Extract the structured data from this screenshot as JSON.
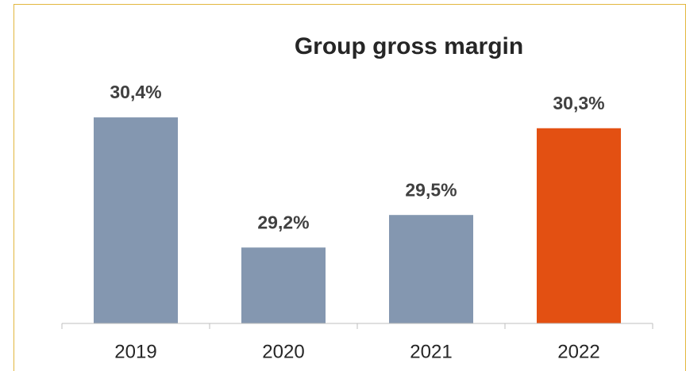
{
  "chart_data": {
    "type": "bar",
    "title": "Group gross margin",
    "categories": [
      "2019",
      "2020",
      "2021",
      "2022"
    ],
    "values": [
      30.4,
      29.2,
      29.5,
      30.3
    ],
    "value_labels": [
      "30,4%",
      "29,2%",
      "29,5%",
      "30,3%"
    ],
    "colors": [
      "#8497b0",
      "#8497b0",
      "#8497b0",
      "#e35012"
    ],
    "ylim": [
      28.5,
      31
    ]
  }
}
